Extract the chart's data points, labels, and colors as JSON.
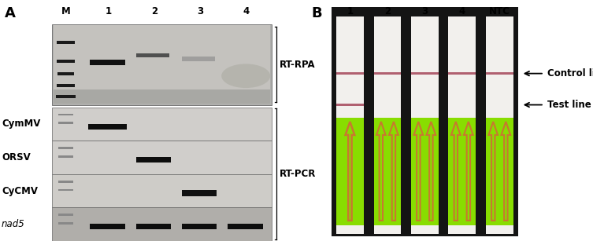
{
  "panel_A_label": "A",
  "panel_B_label": "B",
  "panel_A_col_labels": [
    "M",
    "1",
    "2",
    "3",
    "4"
  ],
  "panel_A_row_labels_left": [
    "CymMV",
    "ORSV",
    "CyCMV",
    "nad5"
  ],
  "panel_A_row_label_italic": [
    "nad5"
  ],
  "panel_A_right_labels": [
    "RT-RPA",
    "RT-PCR"
  ],
  "panel_B_col_labels": [
    "1",
    "2",
    "3",
    "4",
    "NTC"
  ],
  "panel_B_right_labels": [
    "Control line",
    "Test line"
  ],
  "gel_rpa_bg": "#b8b8b8",
  "gel_rpa_bg2": "#c8c6c0",
  "gel_pcr_bgs": [
    "#d0cecb",
    "#d0cecb",
    "#ceccc8",
    "#b0aeaa"
  ],
  "control_line_color": "#b06070",
  "test_line_color": "#b06070",
  "arrow_color": "#c87830",
  "strip_bg": "#f2f0ed",
  "strip_green": "#88dd00",
  "strip_sep": "#0a0a0a",
  "band_dark": "#111111",
  "band_mid": "#555555",
  "band_faint": "#999999",
  "marker_color": "#444444",
  "label_fontsize": 8.5,
  "panel_label_fontsize": 13
}
